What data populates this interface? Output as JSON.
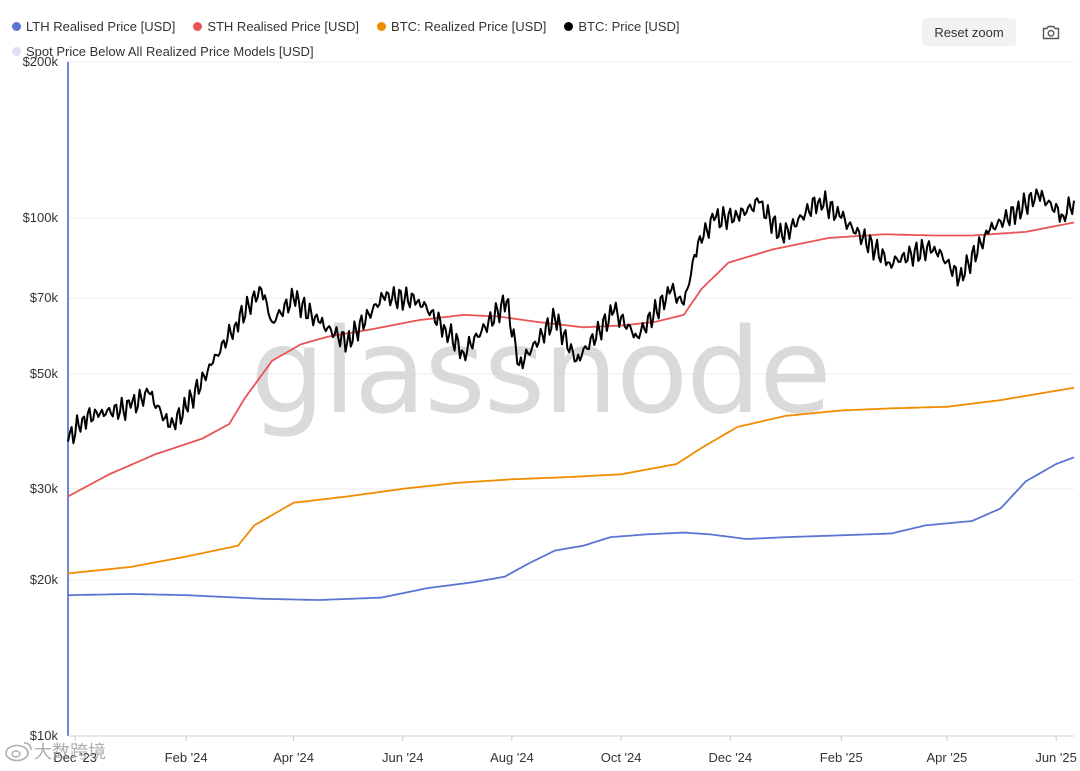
{
  "legend": {
    "items": [
      {
        "label": "LTH Realised Price [USD]",
        "color": "#5b75d1"
      },
      {
        "label": "STH Realised Price [USD]",
        "color": "#ea5455"
      },
      {
        "label": "BTC: Realized Price [USD]",
        "color": "#f08c00"
      },
      {
        "label": "BTC: Price [USD]",
        "color": "#000000"
      },
      {
        "label": "Spot Price Below All Realized Price Models [USD]",
        "color": "#e3dcf7"
      }
    ]
  },
  "toolbar": {
    "reset_zoom_label": "Reset zoom",
    "camera_icon": "camera-icon"
  },
  "watermark": {
    "text": "glassnode"
  },
  "corner_mark": {
    "text": "大数跨境",
    "icon": "weibo-icon"
  },
  "chart_data": {
    "type": "line",
    "y_scale": "log",
    "ylim": [
      10000,
      200000
    ],
    "xlim": [
      "2023-11-27",
      "2025-06-11"
    ],
    "y_ticks": [
      {
        "value": 10000,
        "label": "$10k"
      },
      {
        "value": 20000,
        "label": "$20k"
      },
      {
        "value": 30000,
        "label": "$30k"
      },
      {
        "value": 50000,
        "label": "$50k"
      },
      {
        "value": 70000,
        "label": "$70k"
      },
      {
        "value": 100000,
        "label": "$100k"
      },
      {
        "value": 200000,
        "label": "$200k"
      }
    ],
    "x_ticks": [
      {
        "date": "2023-12-01",
        "label": "Dec '23"
      },
      {
        "date": "2024-02-01",
        "label": "Feb '24"
      },
      {
        "date": "2024-04-01",
        "label": "Apr '24"
      },
      {
        "date": "2024-06-01",
        "label": "Jun '24"
      },
      {
        "date": "2024-08-01",
        "label": "Aug '24"
      },
      {
        "date": "2024-10-01",
        "label": "Oct '24"
      },
      {
        "date": "2024-12-01",
        "label": "Dec '24"
      },
      {
        "date": "2025-02-01",
        "label": "Feb '25"
      },
      {
        "date": "2025-04-01",
        "label": "Apr '25"
      },
      {
        "date": "2025-06-01",
        "label": "Jun '25"
      }
    ],
    "grid": "horizontal",
    "legend_position": "top-left",
    "series": [
      {
        "name": "LTH Realised Price [USD]",
        "color": "#5b75d1",
        "points": [
          [
            "2023-11-27",
            18700
          ],
          [
            "2024-01-01",
            18800
          ],
          [
            "2024-02-01",
            18700
          ],
          [
            "2024-03-15",
            18400
          ],
          [
            "2024-04-15",
            18300
          ],
          [
            "2024-05-20",
            18500
          ],
          [
            "2024-06-15",
            19300
          ],
          [
            "2024-07-10",
            19800
          ],
          [
            "2024-07-28",
            20300
          ],
          [
            "2024-08-10",
            21500
          ],
          [
            "2024-08-25",
            22800
          ],
          [
            "2024-09-10",
            23300
          ],
          [
            "2024-09-25",
            24200
          ],
          [
            "2024-10-15",
            24500
          ],
          [
            "2024-11-05",
            24700
          ],
          [
            "2024-11-20",
            24500
          ],
          [
            "2024-12-10",
            24000
          ],
          [
            "2025-01-01",
            24200
          ],
          [
            "2025-02-01",
            24400
          ],
          [
            "2025-03-01",
            24600
          ],
          [
            "2025-03-20",
            25500
          ],
          [
            "2025-04-15",
            26000
          ],
          [
            "2025-05-01",
            27500
          ],
          [
            "2025-05-15",
            31000
          ],
          [
            "2025-06-01",
            33500
          ],
          [
            "2025-06-11",
            34500
          ]
        ]
      },
      {
        "name": "STH Realised Price [USD]",
        "color": "#ea5455",
        "points": [
          [
            "2023-11-27",
            29000
          ],
          [
            "2023-12-20",
            32000
          ],
          [
            "2024-01-15",
            35000
          ],
          [
            "2024-02-10",
            37500
          ],
          [
            "2024-02-25",
            40000
          ],
          [
            "2024-03-05",
            45000
          ],
          [
            "2024-03-20",
            53000
          ],
          [
            "2024-04-05",
            57000
          ],
          [
            "2024-04-20",
            59000
          ],
          [
            "2024-05-15",
            61000
          ],
          [
            "2024-06-10",
            63500
          ],
          [
            "2024-07-05",
            65000
          ],
          [
            "2024-07-25",
            64500
          ],
          [
            "2024-08-15",
            63000
          ],
          [
            "2024-09-10",
            61500
          ],
          [
            "2024-10-01",
            62000
          ],
          [
            "2024-10-20",
            63000
          ],
          [
            "2024-11-05",
            65000
          ],
          [
            "2024-11-15",
            73000
          ],
          [
            "2024-11-30",
            82000
          ],
          [
            "2024-12-25",
            87000
          ],
          [
            "2025-01-25",
            91500
          ],
          [
            "2025-02-25",
            93000
          ],
          [
            "2025-03-25",
            92500
          ],
          [
            "2025-04-15",
            92500
          ],
          [
            "2025-05-15",
            94000
          ],
          [
            "2025-06-11",
            98000
          ]
        ]
      },
      {
        "name": "BTC: Realized Price [USD]",
        "color": "#f08c00",
        "points": [
          [
            "2023-11-27",
            20600
          ],
          [
            "2024-01-01",
            21200
          ],
          [
            "2024-02-01",
            22200
          ],
          [
            "2024-03-01",
            23300
          ],
          [
            "2024-03-10",
            25500
          ],
          [
            "2024-04-01",
            28200
          ],
          [
            "2024-05-01",
            29000
          ],
          [
            "2024-06-01",
            30000
          ],
          [
            "2024-07-01",
            30800
          ],
          [
            "2024-08-01",
            31300
          ],
          [
            "2024-09-01",
            31600
          ],
          [
            "2024-10-01",
            32000
          ],
          [
            "2024-11-01",
            33500
          ],
          [
            "2024-11-15",
            36000
          ],
          [
            "2024-12-05",
            39500
          ],
          [
            "2025-01-01",
            41500
          ],
          [
            "2025-02-01",
            42500
          ],
          [
            "2025-03-01",
            42900
          ],
          [
            "2025-04-01",
            43200
          ],
          [
            "2025-05-01",
            44500
          ],
          [
            "2025-06-11",
            47000
          ]
        ]
      },
      {
        "name": "BTC: Price [USD]",
        "color": "#000000",
        "points": [
          [
            "2023-11-27",
            37000
          ],
          [
            "2023-12-05",
            41000
          ],
          [
            "2023-12-15",
            42000
          ],
          [
            "2024-01-01",
            43000
          ],
          [
            "2024-01-11",
            46000
          ],
          [
            "2024-01-23",
            39500
          ],
          [
            "2024-02-01",
            43000
          ],
          [
            "2024-02-15",
            52000
          ],
          [
            "2024-02-28",
            62000
          ],
          [
            "2024-03-14",
            73000
          ],
          [
            "2024-03-20",
            63000
          ],
          [
            "2024-04-01",
            70000
          ],
          [
            "2024-04-15",
            63000
          ],
          [
            "2024-05-01",
            57500
          ],
          [
            "2024-05-21",
            70500
          ],
          [
            "2024-06-10",
            69500
          ],
          [
            "2024-06-25",
            61000
          ],
          [
            "2024-07-05",
            55000
          ],
          [
            "2024-07-29",
            69000
          ],
          [
            "2024-08-05",
            52000
          ],
          [
            "2024-08-25",
            64000
          ],
          [
            "2024-09-06",
            53000
          ],
          [
            "2024-09-27",
            66000
          ],
          [
            "2024-10-10",
            59000
          ],
          [
            "2024-10-29",
            72500
          ],
          [
            "2024-11-05",
            68000
          ],
          [
            "2024-11-13",
            90000
          ],
          [
            "2024-11-22",
            99000
          ],
          [
            "2024-12-05",
            101000
          ],
          [
            "2024-12-17",
            107000
          ],
          [
            "2024-12-30",
            92000
          ],
          [
            "2025-01-20",
            109000
          ],
          [
            "2025-02-01",
            100000
          ],
          [
            "2025-02-28",
            82000
          ],
          [
            "2025-03-25",
            88000
          ],
          [
            "2025-04-08",
            76500
          ],
          [
            "2025-04-25",
            95000
          ],
          [
            "2025-05-10",
            103000
          ],
          [
            "2025-05-22",
            111000
          ],
          [
            "2025-06-05",
            101000
          ],
          [
            "2025-06-11",
            108000
          ]
        ]
      }
    ]
  }
}
